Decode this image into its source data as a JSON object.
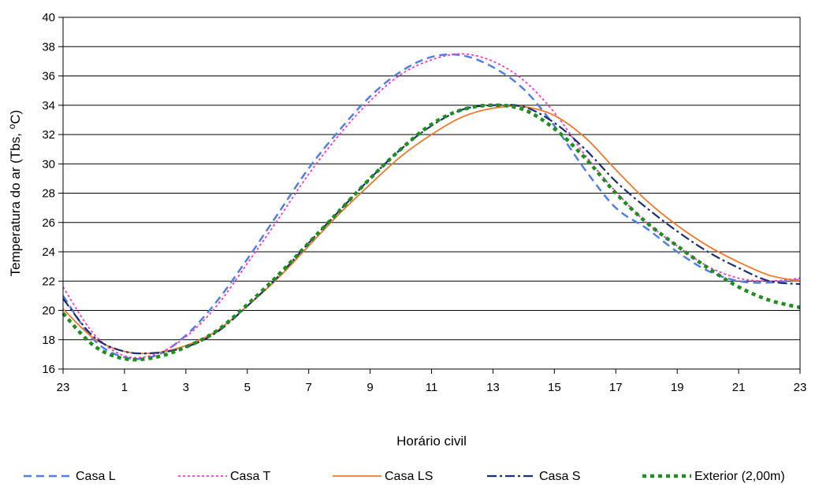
{
  "chart_data": {
    "type": "line",
    "title": "",
    "xlabel": "Horário civil",
    "ylabel_main": "Temperatura do ar (Tbs, ",
    "ylabel_sup": "o",
    "ylabel_end": "C)",
    "ylim": [
      16,
      40
    ],
    "y_ticks": [
      "16",
      "18",
      "20",
      "22",
      "24",
      "26",
      "28",
      "30",
      "32",
      "34",
      "36",
      "38",
      "40"
    ],
    "x_tick_labels": [
      "23",
      "1",
      "3",
      "5",
      "7",
      "9",
      "11",
      "13",
      "15",
      "17",
      "19",
      "21",
      "23"
    ],
    "grid": "horizontal",
    "legend_position": "bottom",
    "x": [
      0,
      1,
      2,
      3,
      4,
      5,
      6,
      7,
      8,
      9,
      10,
      11,
      12,
      13,
      14,
      15,
      16,
      17,
      18,
      19,
      20,
      21,
      22,
      23,
      24
    ],
    "series": [
      {
        "name": "Casa L",
        "color": "#4f7fe8",
        "dash": "10,6",
        "width": 2.5,
        "values": [
          21.0,
          18.0,
          16.8,
          16.9,
          18.3,
          20.6,
          23.5,
          26.6,
          29.7,
          32.3,
          34.6,
          36.3,
          37.3,
          37.4,
          36.6,
          35.1,
          32.6,
          29.6,
          27.0,
          25.6,
          24.0,
          22.7,
          22.0,
          21.9,
          22.1
        ]
      },
      {
        "name": "Casa T",
        "color": "#ff33cc",
        "dash": "3,3",
        "width": 1.8,
        "values": [
          21.6,
          18.4,
          16.9,
          17.0,
          18.2,
          20.3,
          23.2,
          26.2,
          29.3,
          32.0,
          34.3,
          36.1,
          37.1,
          37.5,
          37.0,
          35.7,
          33.5,
          30.6,
          28.1,
          26.0,
          24.4,
          23.0,
          22.2,
          22.0,
          22.2
        ]
      },
      {
        "name": "Casa LS",
        "color": "#f07828",
        "dash": "",
        "width": 1.8,
        "values": [
          20.1,
          18.1,
          17.2,
          17.1,
          17.6,
          18.6,
          20.3,
          22.2,
          24.4,
          26.6,
          28.6,
          30.5,
          32.0,
          33.2,
          33.8,
          33.9,
          33.3,
          31.8,
          29.6,
          27.5,
          25.8,
          24.4,
          23.3,
          22.4,
          22.0
        ]
      },
      {
        "name": "Casa S",
        "color": "#1a2f73",
        "dash": "12,4,3,4",
        "width": 2.2,
        "values": [
          20.8,
          18.2,
          17.2,
          17.1,
          17.5,
          18.5,
          20.3,
          22.3,
          24.6,
          26.8,
          29.0,
          31.0,
          32.6,
          33.7,
          34.0,
          33.9,
          32.8,
          31.0,
          28.8,
          27.0,
          25.4,
          24.0,
          22.9,
          22.0,
          21.8
        ]
      },
      {
        "name": "Exterior (2,00m)",
        "color": "#1e8f1e",
        "dash": "5,5",
        "width": 4.5,
        "values": [
          19.8,
          17.6,
          16.7,
          16.8,
          17.5,
          18.6,
          20.4,
          22.4,
          24.6,
          26.8,
          29.0,
          31.0,
          32.7,
          33.7,
          34.0,
          33.7,
          32.4,
          30.4,
          28.0,
          26.0,
          24.4,
          22.9,
          21.6,
          20.7,
          20.2
        ]
      }
    ]
  }
}
